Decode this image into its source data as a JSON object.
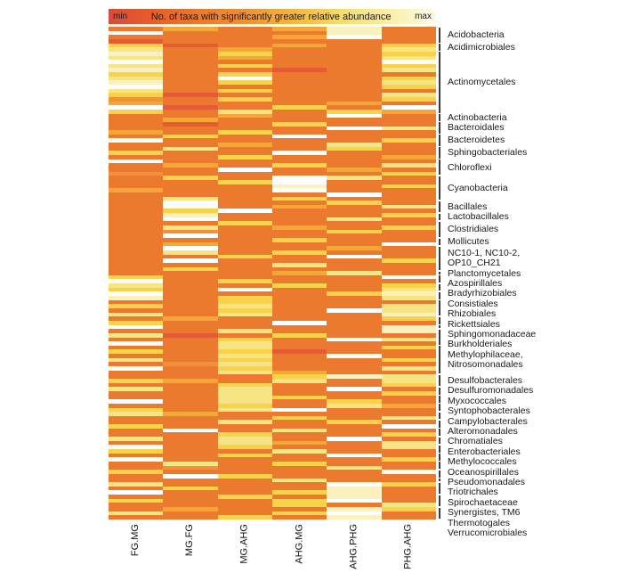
{
  "chart_data": {
    "type": "heatmap",
    "title": "No. of taxa with significantly greater relative abundance",
    "colorscale": {
      "min_label": "min",
      "max_label": "max",
      "gradient": [
        "#DC4A38",
        "#E85E28",
        "#EE7B2B",
        "#F09236",
        "#F4B83C",
        "#F7DC6E",
        "#FAEFA8",
        "#FDFBEA"
      ]
    },
    "columns": [
      "FG.MG",
      "MG.FG",
      "MG.AHG",
      "AHG.MG",
      "AHG.PHG",
      "PHG.AHG"
    ],
    "row_groups": [
      {
        "label": "Acidobacteria",
        "rows": 4
      },
      {
        "label": "Acidimicrobiales",
        "rows": 2
      },
      {
        "label": "Actinomycetales",
        "rows": 15
      },
      {
        "label": "Actinobacteria",
        "rows": 2
      },
      {
        "label": "Bacteroidales",
        "rows": 3
      },
      {
        "label": "Bacteroidetes",
        "rows": 3
      },
      {
        "label": "Sphingobacteriales",
        "rows": 3
      },
      {
        "label": "Chloroflexi",
        "rows": 4
      },
      {
        "label": "Cyanobacteria",
        "rows": 6
      },
      {
        "label": "Bacillales",
        "rows": 3
      },
      {
        "label": "Lactobacillales",
        "rows": 2
      },
      {
        "label": "Clostridiales",
        "rows": 4
      },
      {
        "label": "Mollicutes",
        "rows": 2
      },
      {
        "label": "NC10-1, NC10-2,\nOP10_CH21",
        "rows": 6
      },
      {
        "label": "Planctomycetales",
        "rows": 1
      },
      {
        "label": "Azospirillales",
        "rows": 2
      },
      {
        "label": "Bradyrhizobiales",
        "rows": 2
      },
      {
        "label": "Consistiales",
        "rows": 2
      },
      {
        "label": "Rhizobiales",
        "rows": 4
      },
      {
        "label": "Rickettsiales",
        "rows": 2
      },
      {
        "label": "Sphingomonadaceae",
        "rows": 1
      },
      {
        "label": "Burkholderiales",
        "rows": 4
      },
      {
        "label": "Methylophilaceae,\nNitrosomonadales",
        "rows": 7
      },
      {
        "label": "Desulfobacterales",
        "rows": 3
      },
      {
        "label": "Desulfuromonadales",
        "rows": 2
      },
      {
        "label": "Myxococcales",
        "rows": 2
      },
      {
        "label": "Syntophobacterales",
        "rows": 2
      },
      {
        "label": "Campylobacterales",
        "rows": 2
      },
      {
        "label": "Alteromonadales",
        "rows": 2
      },
      {
        "label": "Chromatiales",
        "rows": 2
      },
      {
        "label": "Enterobacteriales",
        "rows": 2
      },
      {
        "label": "Methylococcales",
        "rows": 2
      },
      {
        "label": "Oceanospirillales",
        "rows": 2
      },
      {
        "label": "Pseudomonadales",
        "rows": 2
      },
      {
        "label": "Triotrichales",
        "rows": 2
      },
      {
        "label": "Spirochaetaceae",
        "rows": 1
      },
      {
        "label": "Synergistes, TM6",
        "rows": 3
      },
      {
        "label": "Thermotogales",
        "rows": 3
      },
      {
        "label": "Verrucomicrobiales",
        "rows": 3
      }
    ],
    "palette": {
      "r": "#DC4531",
      "R": "#E45C33",
      "O": "#EC7A2E",
      "q": "#F1913C",
      "Y": "#F4A736",
      "y": "#F8D24A",
      "l": "#F7E484",
      "p": "#FBF1BE",
      "W": "#FFFFFF"
    },
    "cells": [
      "OYOYpO",
      "WOOOpO",
      "OOOYWO",
      "ROOOOO",
      "yROYOy",
      "lOYOOl",
      "pOyOOy",
      "lOYOOl",
      "WOOOOW",
      "lOyOOy",
      "pOOROl",
      "yOyOOO",
      "lOWOOy",
      "pOyOOl",
      "WOOOOy",
      "lOyOOO",
      "yROOOl",
      "qOyOOy",
      "YOOOYO",
      "WROyOW",
      "yOlOyY",
      "OOYOWO",
      "OYOOOO",
      "OROyOO",
      "OOOOWl",
      "YOyOOO",
      "OyOWOO",
      "WOOOOy",
      "OOYOlO",
      "OlOOyO",
      "yOOWOO",
      "OOyOOY",
      "WOOOOO",
      "OYOyOl",
      "OOWOYO",
      "qOOOOy",
      "OyOWlO",
      "OOyWOO",
      "OOOpOy",
      "YOOWOO",
      "OOOOWO",
      "OlOyOO",
      "OWOOyO",
      "OWOYOl",
      "OyWOOO",
      "OpOOOy",
      "OWOOlO",
      "OOyOOO",
      "OlOYOy",
      "OqOOyO",
      "OWOOOO",
      "OOOyOO",
      "OYOOOW",
      "OWOOYO",
      "OlOyOO",
      "OOyOWO",
      "OWOOOy",
      "OOOlOO",
      "OyOOOO",
      "OOOYlO",
      "yOOOOW",
      "WOyOOO",
      "lOOyOy",
      "yOWOOl",
      "WOOOyp",
      "pOyOOl",
      "OOyOOO",
      "yOlOOl",
      "OOyOWl",
      "lOlOOp",
      "OYOOOy",
      "yOOWOO",
      "WOOOOp",
      "OOlOOp",
      "lROyOO",
      "OOyOWl",
      "WOlOOO",
      "OOlOOy",
      "yOyROO",
      "OOlOWO",
      "lOyOOy",
      "OqlOOO",
      "WOyOOl",
      "OOlYOO",
      "OOOypl",
      "yYOlOl",
      "OOyOOy",
      "lOlOWO",
      "OOlOOy",
      "OOlyOO",
      "WOlOyO",
      "OOyOlY",
      "yOlWOO",
      "lYOOOO",
      "OOOyOl",
      "OOlOyO",
      "yOOOOW",
      "OWOlOO",
      "OOyOOy",
      "lOlOWO",
      "OOlYOl",
      "WOyOOl",
      "yOOlOO",
      "OOyOWO",
      "WOOOOy",
      "OlOyOO",
      "OqOOlO",
      "yOOOOW",
      "OWyOOO",
      "OOOlOO",
      "lOOOWy",
      "OyOOpO",
      "WOOypO",
      "OOyOpO",
      "yOOyWO",
      "OOOyOl",
      "OYOOpy",
      "lOOyWO",
      "OOyOpO"
    ]
  }
}
